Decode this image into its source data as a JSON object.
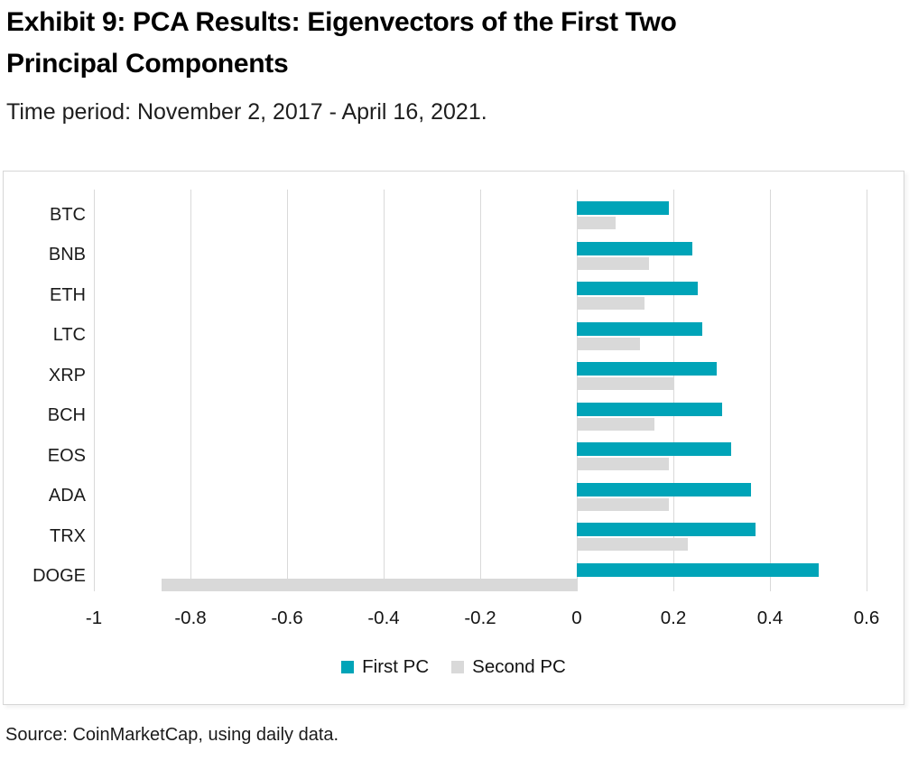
{
  "page": {
    "title_line1": "Exhibit 9: PCA Results: Eigenvectors of the First Two",
    "title_line2": "Principal Components",
    "subtitle": "Time period: November 2, 2017 - April 16, 2021.",
    "source": "Source: CoinMarketCap, using daily data."
  },
  "colors": {
    "first_pc": "#00a4b8",
    "second_pc": "#d9d9d9",
    "gridline": "#d9d9d9",
    "chart_border": "#d6d6d6"
  },
  "chart_data": {
    "type": "bar",
    "orientation": "horizontal",
    "title": "Exhibit 9: PCA Results: Eigenvectors of the First Two Principal Components",
    "subtitle": "Time period: November 2, 2017 - April 16, 2021.",
    "categories": [
      "BTC",
      "BNB",
      "ETH",
      "LTC",
      "XRP",
      "BCH",
      "EOS",
      "ADA",
      "TRX",
      "DOGE"
    ],
    "series": [
      {
        "name": "First PC",
        "color": "#00a4b8",
        "values": [
          0.19,
          0.24,
          0.25,
          0.26,
          0.29,
          0.3,
          0.32,
          0.36,
          0.37,
          0.5
        ]
      },
      {
        "name": "Second PC",
        "color": "#d9d9d9",
        "values": [
          0.08,
          0.15,
          0.14,
          0.13,
          0.2,
          0.16,
          0.19,
          0.19,
          0.23,
          -0.86
        ]
      }
    ],
    "xlabel": "",
    "ylabel": "",
    "xlim": [
      -1,
      0.6
    ],
    "x_ticks": [
      -1,
      -0.8,
      -0.6,
      -0.4,
      -0.2,
      0,
      0.2,
      0.4,
      0.6
    ],
    "x_tick_labels": [
      "-1",
      "-0.8",
      "-0.6",
      "-0.4",
      "-0.2",
      "0",
      "0.2",
      "0.4",
      "0.6"
    ],
    "grid": "vertical",
    "legend_position": "bottom-center",
    "source": "Source: CoinMarketCap, using daily data."
  }
}
